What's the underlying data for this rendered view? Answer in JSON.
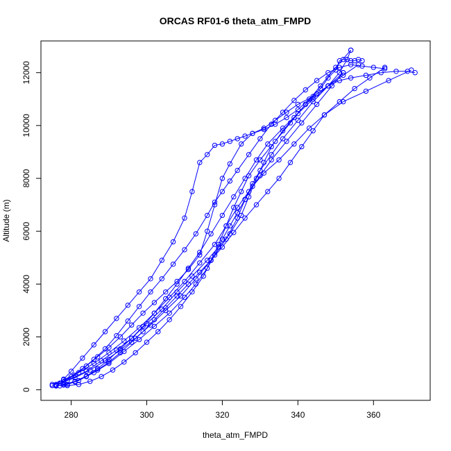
{
  "chart_data": {
    "type": "line",
    "title": "ORCAS RF01-6 theta_atm_FMPD",
    "xlabel": "theta_atm_FMPD",
    "ylabel": "Altitude (m)",
    "xlim": [
      272,
      375
    ],
    "ylim": [
      -400,
      13200
    ],
    "xticks": [
      "280",
      "300",
      "320",
      "340",
      "360"
    ],
    "yticks": [
      "0",
      "2000",
      "4000",
      "6000",
      "8000",
      "10000",
      "12000"
    ],
    "grid": false,
    "legend": "none",
    "markers": "open-circle",
    "line_color": "#0000ff",
    "series": [
      {
        "x": [
          276,
          278,
          281,
          284,
          287,
          290,
          293,
          296,
          299,
          302,
          305,
          308,
          311,
          314,
          316,
          318,
          320,
          322,
          325,
          328,
          331,
          334,
          337,
          340,
          343,
          346,
          348,
          350,
          351,
          352,
          353,
          354,
          355,
          356,
          357
        ],
        "y": [
          150,
          300,
          550,
          900,
          1250,
          1600,
          2000,
          2450,
          2900,
          3300,
          3700,
          4100,
          4550,
          5100,
          6000,
          7000,
          8000,
          8550,
          9300,
          9700,
          9850,
          10050,
          10300,
          10600,
          11000,
          11400,
          11800,
          12100,
          12450,
          12500,
          12500,
          12450,
          12450,
          12500,
          12450
        ]
      },
      {
        "x": [
          356,
          352,
          348,
          344,
          340,
          337,
          334,
          331,
          328,
          326,
          324,
          322,
          320,
          318,
          316,
          314,
          312,
          310,
          307,
          304,
          301,
          298,
          295,
          292,
          289,
          286,
          283,
          280,
          278,
          276
        ],
        "y": [
          12300,
          11900,
          11500,
          11100,
          10800,
          10500,
          10200,
          9900,
          9700,
          9600,
          9500,
          9400,
          9300,
          9250,
          8900,
          8600,
          7500,
          6500,
          5600,
          4900,
          4200,
          3700,
          3200,
          2700,
          2200,
          1700,
          1200,
          700,
          400,
          200
        ]
      },
      {
        "x": [
          275,
          279,
          284,
          288,
          292,
          296,
          300,
          304,
          308,
          312,
          316,
          319,
          322,
          325,
          327,
          329,
          331,
          333,
          336,
          339,
          342,
          345,
          348,
          351,
          354,
          358,
          362,
          366,
          369,
          371
        ],
        "y": [
          160,
          350,
          700,
          1100,
          1500,
          1950,
          2500,
          3050,
          3700,
          4300,
          4900,
          5400,
          5900,
          6600,
          7300,
          8000,
          8600,
          9200,
          9800,
          10300,
          10800,
          11200,
          11500,
          11700,
          11800,
          11900,
          12000,
          12050,
          12050,
          12000
        ]
      },
      {
        "x": [
          370,
          364,
          358,
          352,
          347,
          343,
          339,
          335,
          331,
          328,
          326,
          324,
          322,
          320,
          318,
          316,
          313,
          310,
          306,
          302,
          298,
          294,
          290,
          286,
          282,
          279,
          277
        ],
        "y": [
          12100,
          11700,
          11300,
          10900,
          10400,
          9900,
          9300,
          8700,
          8200,
          7700,
          7200,
          6700,
          6200,
          5700,
          5100,
          4600,
          4000,
          3500,
          2900,
          2400,
          1900,
          1450,
          1000,
          650,
          350,
          200,
          150
        ]
      },
      {
        "x": [
          277,
          280,
          283,
          286,
          289,
          292,
          295,
          298,
          301,
          304,
          307,
          310,
          313,
          316,
          318,
          320,
          322,
          324,
          327,
          330,
          333,
          336,
          339,
          342,
          345,
          348,
          351,
          354,
          357,
          360,
          363
        ],
        "y": [
          250,
          500,
          800,
          1150,
          1550,
          2050,
          2600,
          3150,
          3700,
          4200,
          4750,
          5300,
          5900,
          6600,
          7100,
          7500,
          7900,
          8300,
          8900,
          9500,
          10050,
          10500,
          10950,
          11350,
          11700,
          12000,
          12200,
          12300,
          12250,
          12200,
          12150
        ]
      },
      {
        "x": [
          363,
          359,
          355,
          351,
          347,
          344,
          341,
          338,
          335,
          332,
          329,
          326,
          323,
          320,
          317,
          314,
          311,
          308,
          305,
          302,
          299,
          296,
          293,
          290,
          287,
          284,
          281,
          278
        ],
        "y": [
          12200,
          11800,
          11400,
          10900,
          10400,
          9800,
          9200,
          8600,
          8000,
          7500,
          7000,
          6500,
          5950,
          5400,
          4900,
          4450,
          4000,
          3550,
          3100,
          2650,
          2200,
          1800,
          1400,
          1050,
          750,
          500,
          300,
          180
        ]
      },
      {
        "x": [
          278,
          281,
          285,
          289,
          293,
          297,
          301,
          305,
          309,
          313,
          317,
          321,
          324,
          326,
          328,
          330,
          333,
          336,
          340,
          344,
          348,
          351,
          353,
          354
        ],
        "y": [
          300,
          450,
          750,
          1100,
          1500,
          1950,
          2450,
          3000,
          3550,
          4200,
          4900,
          5700,
          6500,
          7200,
          7800,
          8300,
          8900,
          9500,
          10200,
          10900,
          11500,
          12000,
          12500,
          12850
        ]
      },
      {
        "x": [
          354,
          350,
          346,
          342,
          338,
          334,
          330,
          327,
          325,
          323,
          321,
          319,
          317,
          315,
          312,
          309,
          306,
          303,
          300,
          297,
          294,
          291,
          288,
          285,
          282,
          279,
          276
        ],
        "y": [
          12850,
          12200,
          11500,
          10800,
          10100,
          9400,
          8700,
          8100,
          7500,
          6900,
          6200,
          5500,
          4900,
          4300,
          3700,
          3150,
          2650,
          2200,
          1800,
          1400,
          1050,
          750,
          500,
          320,
          200,
          160,
          170
        ]
      },
      {
        "x": [
          275,
          278,
          282,
          286,
          290,
          294,
          298,
          302,
          306,
          310,
          314,
          318,
          321,
          324,
          327,
          330,
          333,
          337,
          341,
          345,
          349,
          352
        ],
        "y": [
          200,
          380,
          650,
          1000,
          1400,
          1850,
          2350,
          2900,
          3500,
          4100,
          4800,
          5500,
          6200,
          6900,
          7500,
          8100,
          8700,
          9400,
          10100,
          10800,
          11500,
          12000
        ]
      },
      {
        "x": [
          352,
          348,
          344,
          340,
          336,
          332,
          329,
          326,
          323,
          320,
          317,
          314,
          311,
          308,
          305,
          302,
          299,
          296,
          293,
          290,
          287,
          284,
          281,
          278,
          276
        ],
        "y": [
          12000,
          11500,
          11000,
          10450,
          9900,
          9300,
          8700,
          8000,
          7300,
          6600,
          5900,
          5200,
          4600,
          4000,
          3450,
          2900,
          2400,
          1950,
          1550,
          1150,
          800,
          520,
          320,
          200,
          150
        ]
      }
    ]
  }
}
